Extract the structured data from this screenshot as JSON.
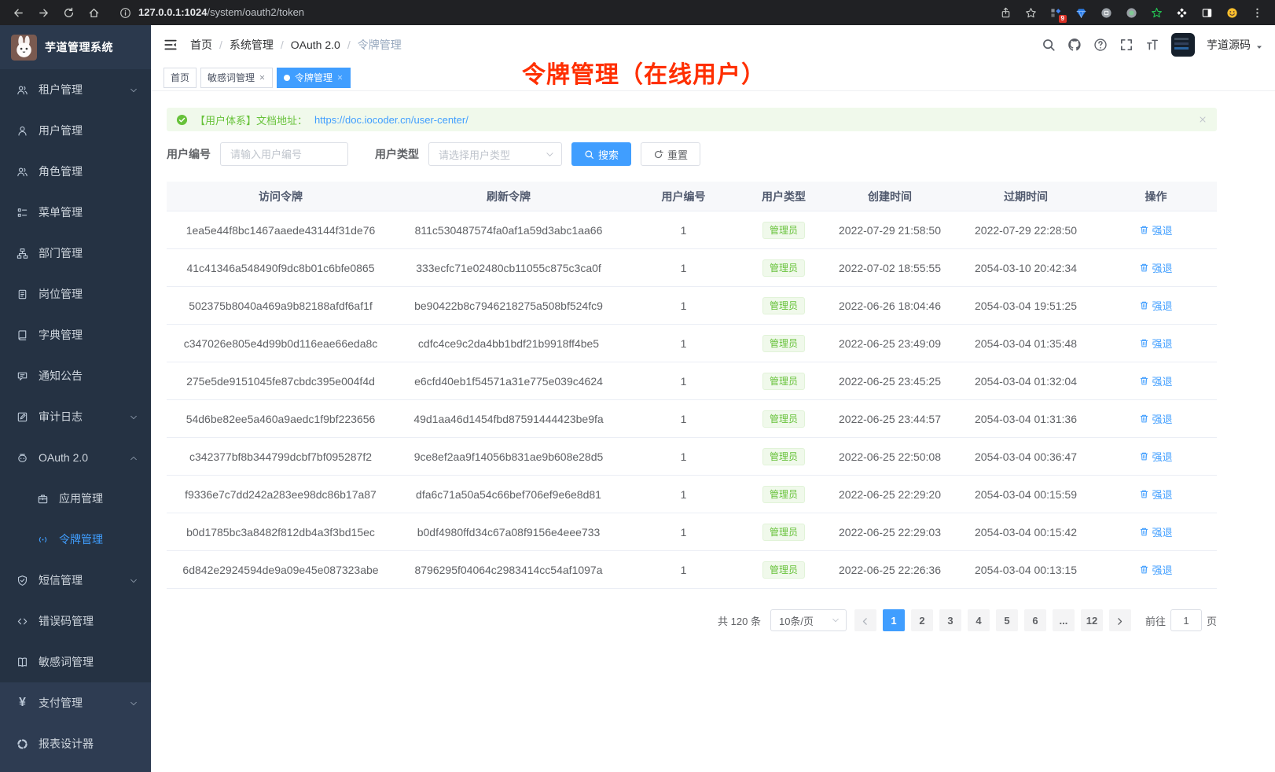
{
  "colors": {
    "accent": "#409eff",
    "success": "#67c23a",
    "annotation_red": "#ff2f00",
    "sidebar_bg": "#253243"
  },
  "browser": {
    "url_host": "127.0.0.1:1024",
    "url_path": "/system/oauth2/token",
    "extension_badge": "9"
  },
  "sidebar": {
    "app_title": "芋道管理系统",
    "items": [
      {
        "icon": "tenant-icon",
        "label": "租户管理",
        "chevron": "chevron-down-icon"
      },
      {
        "icon": "user-icon",
        "label": "用户管理"
      },
      {
        "icon": "role-icon",
        "label": "角色管理"
      },
      {
        "icon": "menu-icon",
        "label": "菜单管理"
      },
      {
        "icon": "dept-icon",
        "label": "部门管理"
      },
      {
        "icon": "post-icon",
        "label": "岗位管理"
      },
      {
        "icon": "dict-icon",
        "label": "字典管理"
      },
      {
        "icon": "notice-icon",
        "label": "通知公告"
      },
      {
        "icon": "audit-icon",
        "label": "审计日志",
        "chevron": "chevron-down-icon"
      },
      {
        "icon": "oauth-icon",
        "label": "OAuth 2.0",
        "chevron": "chevron-up-icon"
      },
      {
        "icon": "app-icon",
        "label": "应用管理",
        "sub": true
      },
      {
        "icon": "token-icon",
        "label": "令牌管理",
        "sub": true,
        "active": true
      },
      {
        "icon": "sms-icon",
        "label": "短信管理",
        "chevron": "chevron-down-icon"
      },
      {
        "icon": "errcode-icon",
        "label": "错误码管理"
      },
      {
        "icon": "sensitive-icon",
        "label": "敏感词管理"
      },
      {
        "icon": "pay-icon",
        "label": "支付管理",
        "chevron": "chevron-down-icon",
        "section": true
      },
      {
        "icon": "report-icon",
        "label": "报表设计器",
        "section": true
      }
    ]
  },
  "header": {
    "breadcrumb": [
      "首页",
      "系统管理",
      "OAuth 2.0",
      "令牌管理"
    ],
    "username": "芋道源码"
  },
  "tabs": [
    {
      "label": "首页"
    },
    {
      "label": "敏感词管理",
      "closable": true
    },
    {
      "label": "令牌管理",
      "closable": true,
      "active": true
    }
  ],
  "annotation": "令牌管理（在线用户）",
  "alert": {
    "prefix": "【用户体系】文档地址：",
    "link": "https://doc.iocoder.cn/user-center/"
  },
  "filters": {
    "user_id_label": "用户编号",
    "user_id_placeholder": "请输入用户编号",
    "user_type_label": "用户类型",
    "user_type_placeholder": "请选择用户类型",
    "search_label": "搜索",
    "reset_label": "重置"
  },
  "table": {
    "columns": [
      "访问令牌",
      "刷新令牌",
      "用户编号",
      "用户类型",
      "创建时间",
      "过期时间",
      "操作"
    ],
    "action_label": "强退",
    "rows": [
      {
        "access": "1ea5e44f8bc1467aaede43144f31de76",
        "refresh": "811c530487574fa0af1a59d3abc1aa66",
        "user_id": "1",
        "user_type": "管理员",
        "created": "2022-07-29 21:58:50",
        "expires": "2022-07-29 22:28:50"
      },
      {
        "access": "41c41346a548490f9dc8b01c6bfe0865",
        "refresh": "333ecfc71e02480cb11055c875c3ca0f",
        "user_id": "1",
        "user_type": "管理员",
        "created": "2022-07-02 18:55:55",
        "expires": "2054-03-10 20:42:34"
      },
      {
        "access": "502375b8040a469a9b82188afdf6af1f",
        "refresh": "be90422b8c7946218275a508bf524fc9",
        "user_id": "1",
        "user_type": "管理员",
        "created": "2022-06-26 18:04:46",
        "expires": "2054-03-04 19:51:25"
      },
      {
        "access": "c347026e805e4d99b0d116eae66eda8c",
        "refresh": "cdfc4ce9c2da4bb1bdf21b9918ff4be5",
        "user_id": "1",
        "user_type": "管理员",
        "created": "2022-06-25 23:49:09",
        "expires": "2054-03-04 01:35:48"
      },
      {
        "access": "275e5de9151045fe87cbdc395e004f4d",
        "refresh": "e6cfd40eb1f54571a31e775e039c4624",
        "user_id": "1",
        "user_type": "管理员",
        "created": "2022-06-25 23:45:25",
        "expires": "2054-03-04 01:32:04"
      },
      {
        "access": "54d6be82ee5a460a9aedc1f9bf223656",
        "refresh": "49d1aa46d1454fbd87591444423be9fa",
        "user_id": "1",
        "user_type": "管理员",
        "created": "2022-06-25 23:44:57",
        "expires": "2054-03-04 01:31:36"
      },
      {
        "access": "c342377bf8b344799dcbf7bf095287f2",
        "refresh": "9ce8ef2aa9f14056b831ae9b608e28d5",
        "user_id": "1",
        "user_type": "管理员",
        "created": "2022-06-25 22:50:08",
        "expires": "2054-03-04 00:36:47"
      },
      {
        "access": "f9336e7c7dd242a283ee98dc86b17a87",
        "refresh": "dfa6c71a50a54c66bef706ef9e6e8d81",
        "user_id": "1",
        "user_type": "管理员",
        "created": "2022-06-25 22:29:20",
        "expires": "2054-03-04 00:15:59"
      },
      {
        "access": "b0d1785bc3a8482f812db4a3f3bd15ec",
        "refresh": "b0df4980ffd34c67a08f9156e4eee733",
        "user_id": "1",
        "user_type": "管理员",
        "created": "2022-06-25 22:29:03",
        "expires": "2054-03-04 00:15:42"
      },
      {
        "access": "6d842e2924594de9a09e45e087323abe",
        "refresh": "8796295f04064c2983414cc54af1097a",
        "user_id": "1",
        "user_type": "管理员",
        "created": "2022-06-25 22:26:36",
        "expires": "2054-03-04 00:13:15"
      }
    ]
  },
  "pagination": {
    "total": "共 120 条",
    "page_size": "10条/页",
    "pages": [
      {
        "label": "1",
        "active": true
      },
      {
        "label": "2"
      },
      {
        "label": "3"
      },
      {
        "label": "4"
      },
      {
        "label": "5"
      },
      {
        "label": "6"
      },
      {
        "label": "..."
      },
      {
        "label": "12"
      }
    ],
    "goto_label": "前往",
    "goto_value": "1",
    "page_unit": "页"
  }
}
